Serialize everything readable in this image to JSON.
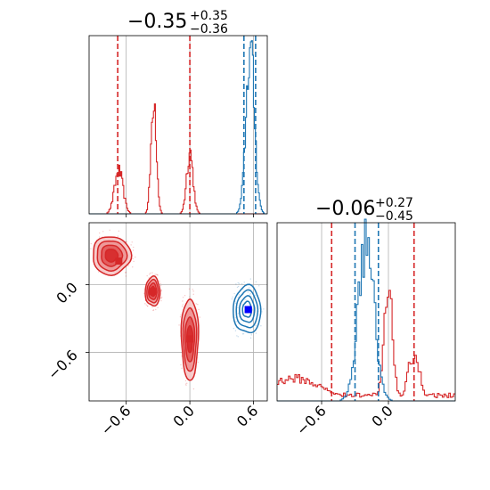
{
  "chart_data": {
    "type": "corner",
    "grid": true,
    "colors": {
      "red": "#d62728",
      "blue": "#1f77b4",
      "red_fill": "#f0a0a0"
    },
    "panels": {
      "top_hist": {
        "type": "histogram",
        "title": {
          "main": "−0.35",
          "sup": "+0.35",
          "sub": "−0.36"
        },
        "xlim": [
          -0.95,
          0.73
        ],
        "series": [
          {
            "name": "",
            "color": "#d62728",
            "peaks": [
              {
                "center": -0.67,
                "sigma": 0.04,
                "height": 0.26
              },
              {
                "center": -0.34,
                "sigma": 0.025,
                "height": 0.72
              },
              {
                "center": 0.0,
                "sigma": 0.03,
                "height": 0.38
              }
            ],
            "quantiles": [
              -0.68,
              0.0
            ]
          },
          {
            "name": "",
            "color": "#1f77b4",
            "peaks": [
              {
                "center": 0.57,
                "sigma": 0.04,
                "height": 1.0
              }
            ],
            "quantiles": [
              0.51,
              0.62
            ]
          }
        ],
        "xticks": [
          -0.6,
          0.0,
          0.6
        ]
      },
      "right_hist": {
        "type": "histogram",
        "title": {
          "main": "−0.06",
          "sup": "+0.27",
          "sub": "−0.45"
        },
        "xlim": [
          -1.0,
          0.6
        ],
        "series": [
          {
            "name": "",
            "color": "#d62728",
            "peaks": [
              {
                "center": -0.85,
                "sigma": 0.25,
                "height": 0.14
              },
              {
                "center": 0.0,
                "sigma": 0.04,
                "height": 0.65
              },
              {
                "center": 0.23,
                "sigma": 0.05,
                "height": 0.3
              }
            ],
            "quantiles": [
              -0.51,
              0.23
            ]
          },
          {
            "name": "",
            "color": "#1f77b4",
            "peaks": [
              {
                "center": -0.2,
                "sigma": 0.07,
                "height": 1.0
              }
            ],
            "quantiles": [
              -0.3,
              -0.09
            ]
          }
        ],
        "xticks": [
          -0.6,
          0.0
        ],
        "xticklabels": [
          "−0.6",
          "0.0"
        ]
      },
      "scatter": {
        "type": "contour",
        "xlim": [
          -0.95,
          0.73
        ],
        "ylim": [
          -1.03,
          0.55
        ],
        "xticks": [
          -0.6,
          0.0,
          0.6
        ],
        "xticklabels": [
          "−0.6",
          "0.0",
          "0.6"
        ],
        "yticks": [
          0.0,
          -0.6
        ],
        "yticklabels": [
          "0.0",
          "−0.6"
        ],
        "blobs": [
          {
            "color": "#d62728",
            "cx": -0.74,
            "cy": 0.26,
            "rx": 0.18,
            "ry": 0.17,
            "filled": true
          },
          {
            "color": "#d62728",
            "cx": -0.35,
            "cy": -0.06,
            "rx": 0.07,
            "ry": 0.13,
            "filled": true
          },
          {
            "color": "#d62728",
            "cx": 0.0,
            "cy": -0.48,
            "rx": 0.08,
            "ry": 0.36,
            "filled": true
          },
          {
            "color": "#1f77b4",
            "cx": 0.54,
            "cy": -0.22,
            "rx": 0.13,
            "ry": 0.21,
            "filled": false
          }
        ],
        "markers": [
          {
            "color": "#d62728",
            "x": -0.67,
            "y": 0.21
          },
          {
            "color": "#d62728",
            "x": -0.35,
            "y": -0.06
          },
          {
            "color": "#d62728",
            "x": 0.0,
            "y": -0.48
          },
          {
            "color": "#0000ff",
            "x": 0.55,
            "y": -0.22
          }
        ]
      }
    }
  }
}
